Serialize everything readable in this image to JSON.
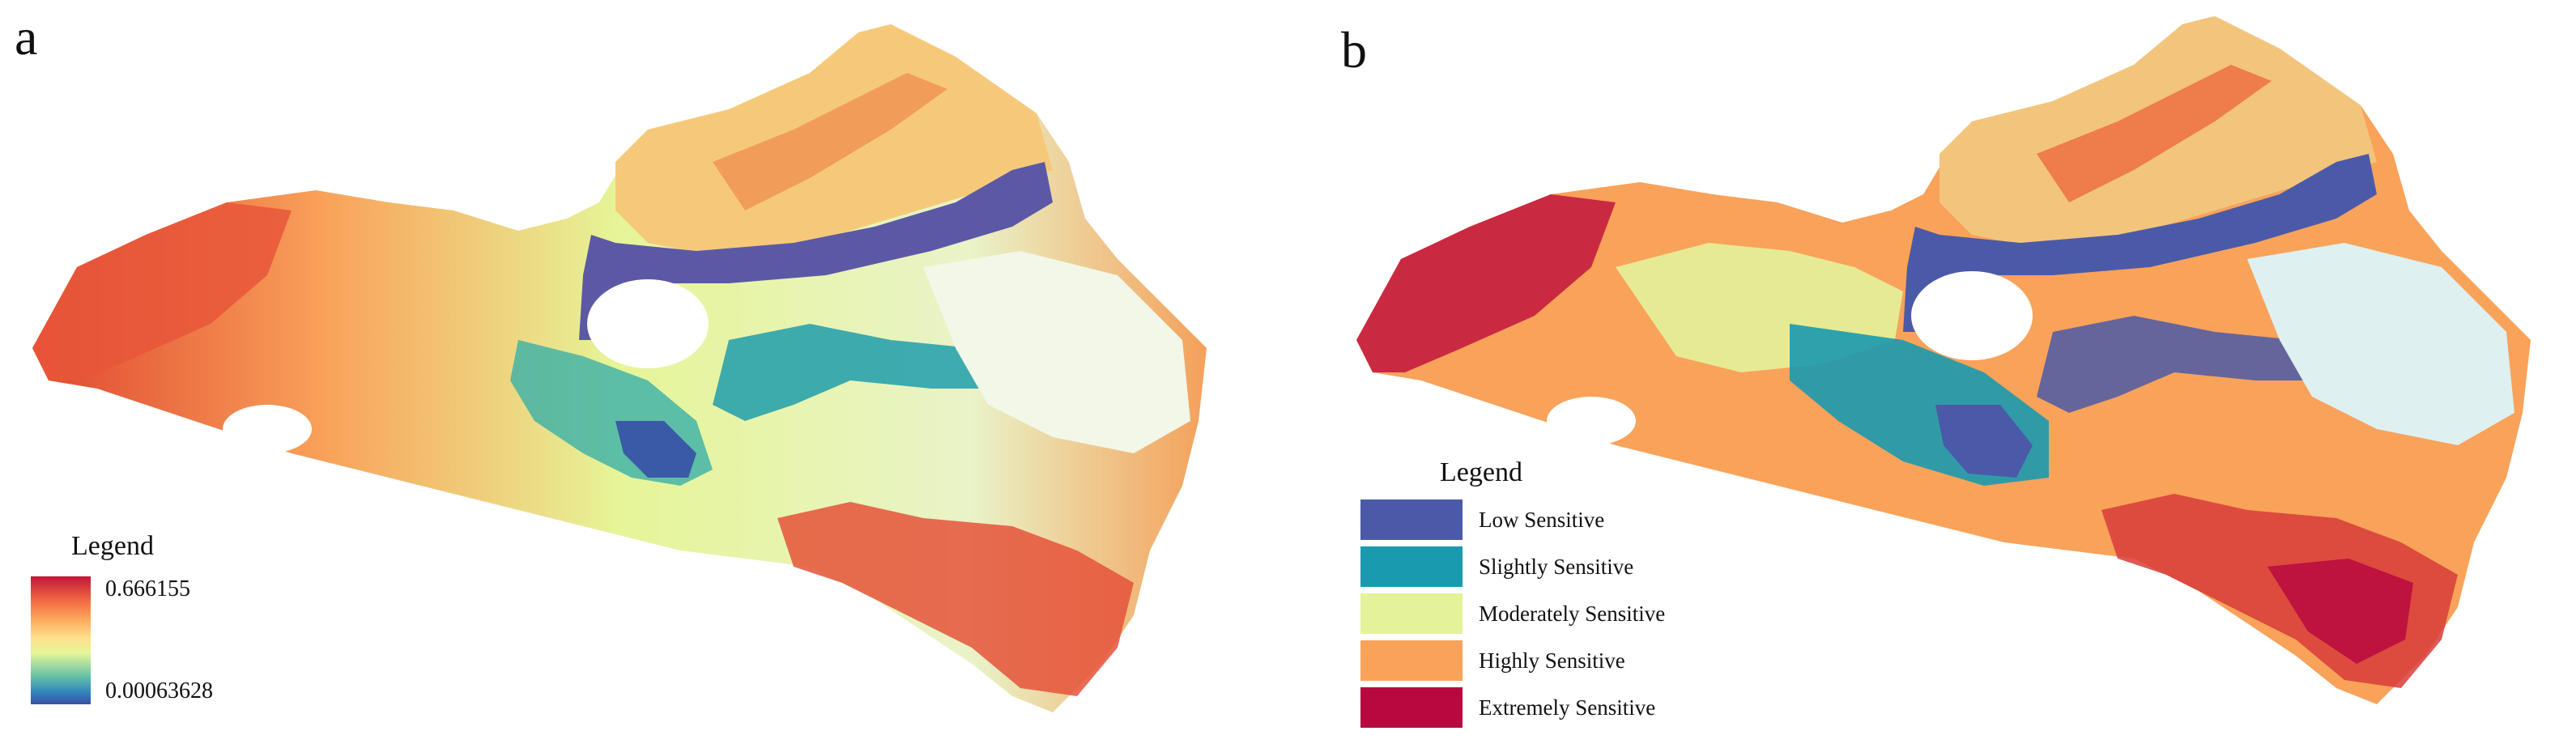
{
  "panels": {
    "a": {
      "label": "a"
    },
    "b": {
      "label": "b"
    }
  },
  "legend_a": {
    "title": "Legend",
    "max_label": "0.666155",
    "min_label": "0.00063628",
    "ramp_colors": [
      "#c3163a",
      "#f46d43",
      "#fdae61",
      "#fee08b",
      "#e6f598",
      "#66c2a5",
      "#3288bd",
      "#3a4fa6"
    ]
  },
  "legend_b": {
    "title": "Legend",
    "classes": [
      {
        "label": "Low Sensitive",
        "color": "#4b5aa8"
      },
      {
        "label": "Slightly Sensitive",
        "color": "#1a9aae"
      },
      {
        "label": "Moderately Sensitive",
        "color": "#e4f29a"
      },
      {
        "label": "Highly Sensitive",
        "color": "#f9a25a"
      },
      {
        "label": "Extremely Sensitive",
        "color": "#b8083f"
      }
    ]
  }
}
